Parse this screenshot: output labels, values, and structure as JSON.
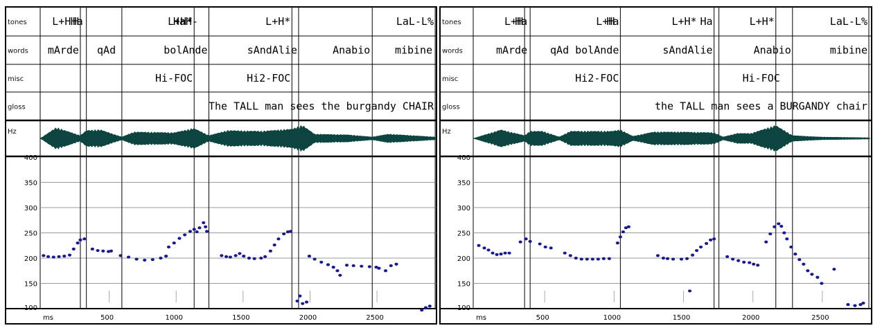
{
  "chart_data": [
    {
      "type": "scatter",
      "tier_labels": [
        "tones",
        "words",
        "misc",
        "gloss",
        "Hz"
      ],
      "tiers": {
        "tones": [
          {
            "t": 240,
            "text": "L+H"
          },
          {
            "t": 300,
            "text": "H"
          },
          {
            "t": 330,
            "text": "Ha"
          },
          {
            "t": 1150,
            "text": "L+H*"
          },
          {
            "t": 1190,
            "text": "HaH-"
          },
          {
            "t": 1880,
            "text": "L+H*"
          },
          {
            "t": 2950,
            "text": "LaL-L%"
          }
        ],
        "words": [
          {
            "t": 300,
            "text": "mArde"
          },
          {
            "t": 575,
            "text": "qAd"
          },
          {
            "t": 1260,
            "text": "bolAnde"
          },
          {
            "t": 1930,
            "text": "sAndAlie"
          },
          {
            "t": 2475,
            "text": "Anabio"
          },
          {
            "t": 2940,
            "text": "mibine"
          }
        ],
        "misc": [
          {
            "t": 1150,
            "text": "Hi-FOC"
          },
          {
            "t": 1880,
            "text": "Hi2-FOC"
          }
        ],
        "gloss": [
          {
            "t": 2950,
            "text": "The TALL man sees the burgandy CHAIR"
          }
        ]
      },
      "boundaries": [
        0,
        300,
        345,
        610,
        1150,
        1260,
        1880,
        1930,
        2480,
        2950
      ],
      "x": {
        "label": "ms",
        "ticks": [
          500,
          1000,
          1500,
          2000,
          2500
        ],
        "range": [
          0,
          2960
        ]
      },
      "y": {
        "ticks": [
          100,
          150,
          200,
          250,
          300,
          350,
          400
        ],
        "range": [
          100,
          400
        ]
      },
      "waveform": [
        [
          0,
          0
        ],
        [
          120,
          0.75
        ],
        [
          300,
          0.2
        ],
        [
          345,
          0.55
        ],
        [
          450,
          0.6
        ],
        [
          610,
          0.1
        ],
        [
          700,
          0.45
        ],
        [
          1000,
          0.4
        ],
        [
          1150,
          0.7
        ],
        [
          1260,
          0.2
        ],
        [
          1400,
          0.55
        ],
        [
          1650,
          0.5
        ],
        [
          1880,
          0.65
        ],
        [
          1960,
          0.9
        ],
        [
          2050,
          0.3
        ],
        [
          2300,
          0.25
        ],
        [
          2480,
          0.1
        ],
        [
          2600,
          0.3
        ],
        [
          2950,
          0.1
        ]
      ],
      "series": [
        {
          "points": [
            [
              25,
              205
            ],
            [
              60,
              203
            ],
            [
              100,
              202
            ],
            [
              140,
              203
            ],
            [
              180,
              204
            ],
            [
              220,
              206
            ],
            [
              250,
              218
            ],
            [
              280,
              230
            ],
            [
              300,
              236
            ],
            [
              330,
              238
            ],
            [
              390,
              218
            ],
            [
              430,
              215
            ],
            [
              470,
              214
            ],
            [
              510,
              213
            ],
            [
              530,
              214
            ],
            [
              600,
              205
            ],
            [
              660,
              202
            ],
            [
              720,
              198
            ],
            [
              780,
              196
            ],
            [
              840,
              197
            ],
            [
              900,
              200
            ],
            [
              940,
              204
            ],
            [
              960,
              222
            ],
            [
              1000,
              230
            ],
            [
              1040,
              239
            ],
            [
              1080,
              246
            ],
            [
              1120,
              253
            ],
            [
              1150,
              257
            ],
            [
              1170,
              252
            ],
            [
              1190,
              260
            ],
            [
              1220,
              270
            ],
            [
              1235,
              262
            ],
            [
              1245,
              253
            ],
            [
              1355,
              205
            ],
            [
              1390,
              203
            ],
            [
              1420,
              202
            ],
            [
              1460,
              205
            ],
            [
              1490,
              209
            ],
            [
              1520,
              204
            ],
            [
              1560,
              200
            ],
            [
              1600,
              199
            ],
            [
              1650,
              200
            ],
            [
              1680,
              203
            ],
            [
              1720,
              214
            ],
            [
              1750,
              226
            ],
            [
              1780,
              238
            ],
            [
              1820,
              248
            ],
            [
              1850,
              252
            ],
            [
              1870,
              253
            ],
            [
              1920,
              115
            ],
            [
              1940,
              125
            ],
            [
              1960,
              110
            ],
            [
              1990,
              113
            ],
            [
              2010,
              204
            ],
            [
              2050,
              198
            ],
            [
              2100,
              192
            ],
            [
              2150,
              187
            ],
            [
              2190,
              182
            ],
            [
              2220,
              175
            ],
            [
              2240,
              166
            ],
            [
              2290,
              186
            ],
            [
              2340,
              185
            ],
            [
              2400,
              184
            ],
            [
              2460,
              183
            ],
            [
              2510,
              182
            ],
            [
              2530,
              180
            ],
            [
              2580,
              175
            ],
            [
              2620,
              185
            ],
            [
              2660,
              188
            ],
            [
              2850,
              97
            ],
            [
              2880,
              102
            ],
            [
              2910,
              105
            ]
          ]
        }
      ]
    },
    {
      "type": "scatter",
      "tier_labels": [
        "tones",
        "words",
        "misc",
        "gloss",
        "Hz"
      ],
      "tiers": {
        "tones": [
          {
            "t": 370,
            "text": "L+H"
          },
          {
            "t": 400,
            "text": "Ha"
          },
          {
            "t": 1030,
            "text": "L+H"
          },
          {
            "t": 1060,
            "text": "Ha"
          },
          {
            "t": 1620,
            "text": "L+H*"
          },
          {
            "t": 1735,
            "text": "Ha"
          },
          {
            "t": 2180,
            "text": "L+H*"
          },
          {
            "t": 2850,
            "text": "LaL-L%"
          }
        ],
        "words": [
          {
            "t": 400,
            "text": "mArde"
          },
          {
            "t": 1060,
            "text": "qAd bolAnde"
          },
          {
            "t": 1735,
            "text": "sAndAlie"
          },
          {
            "t": 2300,
            "text": "Anabio"
          },
          {
            "t": 2850,
            "text": "mibine"
          }
        ],
        "misc": [
          {
            "t": 1060,
            "text": "Hi2-FOC"
          },
          {
            "t": 2220,
            "text": "Hi-FOC"
          }
        ],
        "gloss": [
          {
            "t": 2850,
            "text": "the TALL man sees a BURGANDY chair"
          }
        ]
      },
      "boundaries": [
        0,
        370,
        410,
        1060,
        1735,
        1770,
        2180,
        2300,
        2850
      ],
      "x": {
        "label": "ms",
        "ticks": [
          500,
          1000,
          1500,
          2000,
          2500
        ],
        "range": [
          0,
          2860
        ]
      },
      "y": {
        "ticks": [
          100,
          150,
          200,
          250,
          300,
          350,
          400
        ],
        "range": [
          100,
          400
        ]
      },
      "waveform": [
        [
          0,
          0
        ],
        [
          200,
          0.6
        ],
        [
          370,
          0.2
        ],
        [
          410,
          0.5
        ],
        [
          500,
          0.5
        ],
        [
          620,
          0.1
        ],
        [
          700,
          0.5
        ],
        [
          1000,
          0.5
        ],
        [
          1060,
          0.6
        ],
        [
          1150,
          0.15
        ],
        [
          1300,
          0.45
        ],
        [
          1500,
          0.45
        ],
        [
          1735,
          0.4
        ],
        [
          1800,
          0.1
        ],
        [
          1900,
          0.35
        ],
        [
          2000,
          0.35
        ],
        [
          2180,
          0.9
        ],
        [
          2300,
          0.2
        ],
        [
          2500,
          0.1
        ],
        [
          2850,
          0.05
        ]
      ],
      "series": [
        {
          "points": [
            [
              40,
              225
            ],
            [
              80,
              220
            ],
            [
              110,
              216
            ],
            [
              140,
              210
            ],
            [
              170,
              207
            ],
            [
              200,
              208
            ],
            [
              230,
              210
            ],
            [
              260,
              210
            ],
            [
              340,
              232
            ],
            [
              380,
              238
            ],
            [
              410,
              233
            ],
            [
              480,
              228
            ],
            [
              520,
              222
            ],
            [
              560,
              220
            ],
            [
              660,
              210
            ],
            [
              700,
              205
            ],
            [
              740,
              200
            ],
            [
              780,
              198
            ],
            [
              820,
              198
            ],
            [
              860,
              198
            ],
            [
              900,
              198
            ],
            [
              940,
              199
            ],
            [
              980,
              199
            ],
            [
              1040,
              230
            ],
            [
              1060,
              242
            ],
            [
              1080,
              252
            ],
            [
              1100,
              260
            ],
            [
              1120,
              262
            ],
            [
              1330,
              205
            ],
            [
              1370,
              200
            ],
            [
              1400,
              199
            ],
            [
              1440,
              198
            ],
            [
              1500,
              198
            ],
            [
              1540,
              199
            ],
            [
              1580,
              206
            ],
            [
              1610,
              215
            ],
            [
              1640,
              222
            ],
            [
              1680,
              229
            ],
            [
              1710,
              236
            ],
            [
              1735,
              238
            ],
            [
              1560,
              135
            ],
            [
              1830,
              203
            ],
            [
              1870,
              198
            ],
            [
              1910,
              195
            ],
            [
              1950,
              192
            ],
            [
              1990,
              191
            ],
            [
              2020,
              188
            ],
            [
              2050,
              186
            ],
            [
              2110,
              232
            ],
            [
              2140,
              248
            ],
            [
              2170,
              262
            ],
            [
              2200,
              268
            ],
            [
              2220,
              263
            ],
            [
              2240,
              250
            ],
            [
              2260,
              238
            ],
            [
              2290,
              222
            ],
            [
              2320,
              208
            ],
            [
              2350,
              197
            ],
            [
              2380,
              188
            ],
            [
              2410,
              175
            ],
            [
              2440,
              168
            ],
            [
              2480,
              162
            ],
            [
              2510,
              150
            ],
            [
              2600,
              178
            ],
            [
              2700,
              108
            ],
            [
              2750,
              106
            ],
            [
              2790,
              108
            ],
            [
              2810,
              111
            ]
          ]
        }
      ]
    }
  ]
}
